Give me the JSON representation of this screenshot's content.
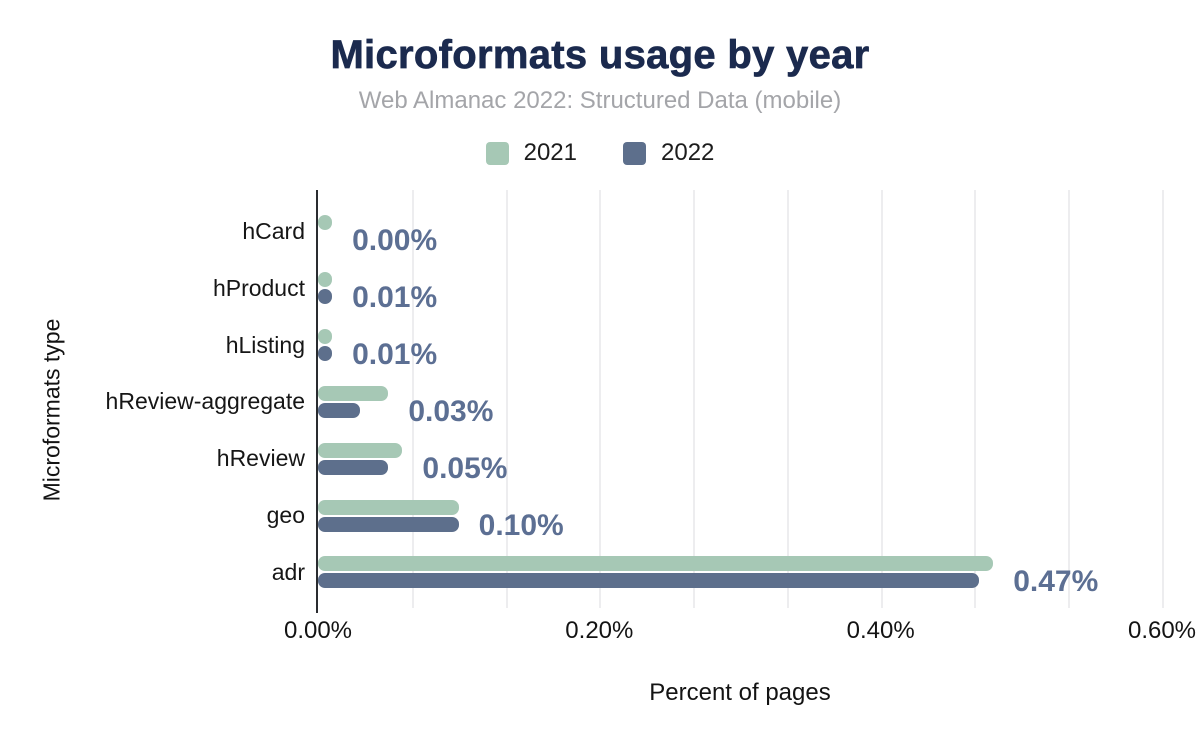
{
  "chart_data": {
    "type": "bar",
    "orientation": "horizontal",
    "title": "Microformats usage by year",
    "subtitle": "Web Almanac 2022: Structured Data (mobile)",
    "xlabel": "Percent of pages",
    "ylabel": "Microformats type",
    "categories": [
      "hCard",
      "hProduct",
      "hListing",
      "hReview-aggregate",
      "hReview",
      "geo",
      "adr"
    ],
    "series": [
      {
        "name": "2021",
        "color": "#a6c8b5",
        "values": [
          0.01,
          0.01,
          0.01,
          0.05,
          0.06,
          0.1,
          0.48
        ]
      },
      {
        "name": "2022",
        "color": "#5d6f8c",
        "values": [
          0.0,
          0.01,
          0.01,
          0.03,
          0.05,
          0.1,
          0.47
        ]
      }
    ],
    "value_labels": [
      "0.00%",
      "0.01%",
      "0.01%",
      "0.03%",
      "0.05%",
      "0.10%",
      "0.47%"
    ],
    "x_ticks": [
      {
        "label": "0.00%",
        "value": 0
      },
      {
        "label": "0.20%",
        "value": 0.2
      },
      {
        "label": "0.40%",
        "value": 0.4
      },
      {
        "label": "0.60%",
        "value": 0.6
      }
    ],
    "xlim": [
      0,
      0.6
    ],
    "grid_minor_step": 0.0666667,
    "grid": true,
    "legend_position": "top",
    "colors": {
      "title": "#1b2a4e",
      "subtitle": "#a4a5a9",
      "value_label": "#5c6f93",
      "axis_line": "#2a2c30",
      "gridline": "#ededef"
    }
  }
}
